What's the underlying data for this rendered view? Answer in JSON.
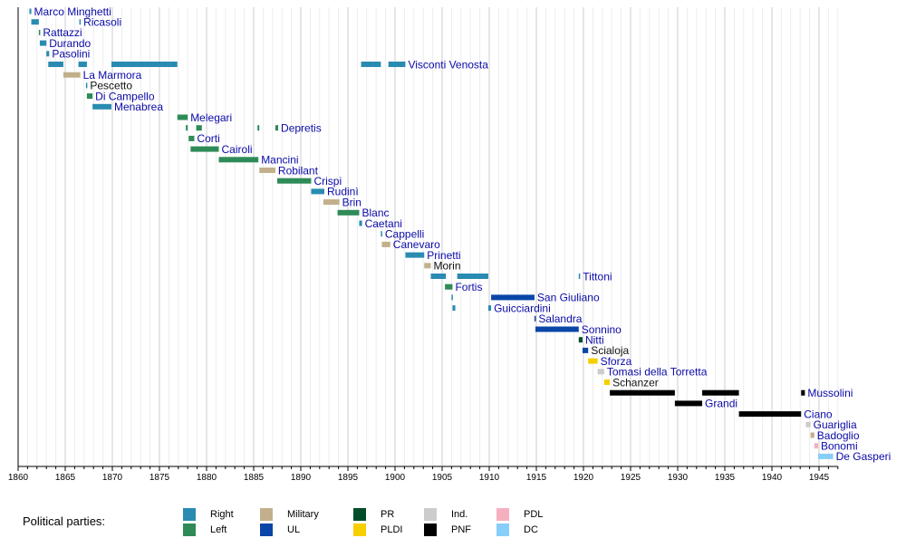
{
  "chart_data": {
    "type": "timeline",
    "title": "",
    "xlabel": "",
    "ylabel": "",
    "xlim": [
      1860,
      1947
    ],
    "x_ticks": [
      1860,
      1865,
      1870,
      1875,
      1880,
      1885,
      1890,
      1895,
      1900,
      1905,
      1910,
      1915,
      1920,
      1925,
      1930,
      1935,
      1940,
      1945
    ],
    "x_tick_labels": [
      "1860",
      "1865",
      "1870",
      "1875",
      "1880",
      "1885",
      "1890",
      "1895",
      "1900",
      "1905",
      "1910",
      "1915",
      "1920",
      "1925",
      "1930",
      "1935",
      "1940",
      "1945"
    ],
    "grid": true,
    "legend_placement": "bottom",
    "rows": [
      {
        "name": "Marco Minghetti",
        "linked": true,
        "terms": [
          {
            "start": 1861.2,
            "end": 1861.4,
            "party": "Right"
          }
        ]
      },
      {
        "name": "Ricasoli",
        "linked": true,
        "terms": [
          {
            "start": 1861.4,
            "end": 1862.2,
            "party": "Right"
          },
          {
            "start": 1866.5,
            "end": 1866.6,
            "party": "Right"
          }
        ]
      },
      {
        "name": "Rattazzi",
        "linked": true,
        "terms": [
          {
            "start": 1862.2,
            "end": 1862.3,
            "party": "Left"
          }
        ]
      },
      {
        "name": "Durando",
        "linked": true,
        "terms": [
          {
            "start": 1862.3,
            "end": 1863.0,
            "party": "Right"
          }
        ]
      },
      {
        "name": "Pasolini",
        "linked": true,
        "terms": [
          {
            "start": 1863.0,
            "end": 1863.3,
            "party": "Right"
          }
        ]
      },
      {
        "name": "Visconti Venosta",
        "linked": true,
        "terms": [
          {
            "start": 1863.2,
            "end": 1864.8,
            "party": "Right"
          },
          {
            "start": 1866.4,
            "end": 1867.3,
            "party": "Right"
          },
          {
            "start": 1869.9,
            "end": 1876.9,
            "party": "Right"
          },
          {
            "start": 1896.4,
            "end": 1898.5,
            "party": "Right"
          },
          {
            "start": 1899.3,
            "end": 1901.1,
            "party": "Right"
          }
        ]
      },
      {
        "name": "La Marmora",
        "linked": true,
        "terms": [
          {
            "start": 1864.8,
            "end": 1866.6,
            "party": "Military"
          }
        ]
      },
      {
        "name": "Pescetto",
        "linked": false,
        "terms": [
          {
            "start": 1867.2,
            "end": 1867.3,
            "party": "Right"
          }
        ]
      },
      {
        "name": "Di Campello",
        "linked": true,
        "terms": [
          {
            "start": 1867.3,
            "end": 1867.9,
            "party": "Left"
          }
        ]
      },
      {
        "name": "Menabrea",
        "linked": true,
        "terms": [
          {
            "start": 1867.9,
            "end": 1869.9,
            "party": "Right"
          }
        ]
      },
      {
        "name": "Melegari",
        "linked": true,
        "terms": [
          {
            "start": 1876.9,
            "end": 1878.0,
            "party": "Left"
          }
        ]
      },
      {
        "name": "Depretis",
        "linked": true,
        "terms": [
          {
            "start": 1877.8,
            "end": 1878.0,
            "party": "Left"
          },
          {
            "start": 1878.9,
            "end": 1879.5,
            "party": "Left"
          },
          {
            "start": 1885.4,
            "end": 1885.6,
            "party": "Left"
          },
          {
            "start": 1887.3,
            "end": 1887.6,
            "party": "Left"
          }
        ]
      },
      {
        "name": "Corti",
        "linked": true,
        "terms": [
          {
            "start": 1878.1,
            "end": 1878.7,
            "party": "Left"
          }
        ]
      },
      {
        "name": "Cairoli",
        "linked": true,
        "terms": [
          {
            "start": 1878.3,
            "end": 1881.3,
            "party": "Left"
          }
        ]
      },
      {
        "name": "Mancini",
        "linked": true,
        "terms": [
          {
            "start": 1881.3,
            "end": 1885.5,
            "party": "Left"
          }
        ]
      },
      {
        "name": "Robilant",
        "linked": true,
        "terms": [
          {
            "start": 1885.6,
            "end": 1887.3,
            "party": "Military"
          }
        ]
      },
      {
        "name": "Crispi",
        "linked": true,
        "terms": [
          {
            "start": 1887.5,
            "end": 1891.1,
            "party": "Left"
          }
        ]
      },
      {
        "name": "Rudinì",
        "linked": true,
        "terms": [
          {
            "start": 1891.1,
            "end": 1892.5,
            "party": "Right"
          }
        ]
      },
      {
        "name": "Brin",
        "linked": true,
        "terms": [
          {
            "start": 1892.4,
            "end": 1894.1,
            "party": "Military"
          }
        ]
      },
      {
        "name": "Blanc",
        "linked": true,
        "terms": [
          {
            "start": 1893.9,
            "end": 1896.2,
            "party": "Left"
          }
        ]
      },
      {
        "name": "Caetani",
        "linked": true,
        "terms": [
          {
            "start": 1896.2,
            "end": 1896.5,
            "party": "Right"
          }
        ]
      },
      {
        "name": "Cappelli",
        "linked": true,
        "terms": [
          {
            "start": 1898.5,
            "end": 1898.6,
            "party": "Right"
          }
        ]
      },
      {
        "name": "Canevaro",
        "linked": true,
        "terms": [
          {
            "start": 1898.6,
            "end": 1899.5,
            "party": "Military"
          }
        ]
      },
      {
        "name": "Prinetti",
        "linked": true,
        "terms": [
          {
            "start": 1901.1,
            "end": 1903.1,
            "party": "Right"
          }
        ]
      },
      {
        "name": "Morin",
        "linked": false,
        "terms": [
          {
            "start": 1903.1,
            "end": 1903.8,
            "party": "Military"
          }
        ]
      },
      {
        "name": "Tittoni",
        "linked": true,
        "terms": [
          {
            "start": 1903.8,
            "end": 1905.4,
            "party": "Right"
          },
          {
            "start": 1906.6,
            "end": 1909.9,
            "party": "Right"
          },
          {
            "start": 1919.5,
            "end": 1919.6,
            "party": "Right"
          }
        ]
      },
      {
        "name": "Fortis",
        "linked": true,
        "terms": [
          {
            "start": 1905.3,
            "end": 1906.1,
            "party": "Left"
          }
        ]
      },
      {
        "name": "San Giuliano",
        "linked": true,
        "terms": [
          {
            "start": 1906.0,
            "end": 1906.1,
            "party": "Right"
          },
          {
            "start": 1910.2,
            "end": 1914.8,
            "party": "UL"
          }
        ]
      },
      {
        "name": "Guicciardini",
        "linked": true,
        "terms": [
          {
            "start": 1906.1,
            "end": 1906.4,
            "party": "Right"
          },
          {
            "start": 1909.9,
            "end": 1910.2,
            "party": "Right"
          }
        ]
      },
      {
        "name": "Salandra",
        "linked": true,
        "terms": [
          {
            "start": 1914.8,
            "end": 1914.9,
            "party": "UL"
          }
        ]
      },
      {
        "name": "Sonnino",
        "linked": true,
        "terms": [
          {
            "start": 1914.9,
            "end": 1919.5,
            "party": "UL"
          }
        ]
      },
      {
        "name": "Nitti",
        "linked": true,
        "terms": [
          {
            "start": 1919.5,
            "end": 1919.9,
            "party": "PR"
          }
        ]
      },
      {
        "name": "Scialoja",
        "linked": false,
        "terms": [
          {
            "start": 1919.9,
            "end": 1920.5,
            "party": "UL"
          }
        ]
      },
      {
        "name": "Sforza",
        "linked": true,
        "terms": [
          {
            "start": 1920.5,
            "end": 1921.5,
            "party": "PLDI"
          }
        ]
      },
      {
        "name": "Tomasi della Torretta",
        "linked": true,
        "terms": [
          {
            "start": 1921.5,
            "end": 1922.2,
            "party": "Ind."
          }
        ]
      },
      {
        "name": "Schanzer",
        "linked": false,
        "terms": [
          {
            "start": 1922.2,
            "end": 1922.8,
            "party": "PLDI"
          }
        ]
      },
      {
        "name": "Mussolini",
        "linked": true,
        "terms": [
          {
            "start": 1922.8,
            "end": 1929.7,
            "party": "PNF"
          },
          {
            "start": 1932.6,
            "end": 1936.5,
            "party": "PNF"
          },
          {
            "start": 1943.1,
            "end": 1943.5,
            "party": "PNF"
          }
        ]
      },
      {
        "name": "Grandi",
        "linked": true,
        "terms": [
          {
            "start": 1929.7,
            "end": 1932.6,
            "party": "PNF"
          }
        ]
      },
      {
        "name": "Ciano",
        "linked": true,
        "terms": [
          {
            "start": 1936.5,
            "end": 1943.1,
            "party": "PNF"
          }
        ]
      },
      {
        "name": "Guariglia",
        "linked": true,
        "terms": [
          {
            "start": 1943.6,
            "end": 1944.1,
            "party": "Ind."
          }
        ]
      },
      {
        "name": "Badoglio",
        "linked": true,
        "terms": [
          {
            "start": 1944.1,
            "end": 1944.5,
            "party": "Military"
          }
        ]
      },
      {
        "name": "Bonomi",
        "linked": true,
        "terms": [
          {
            "start": 1944.5,
            "end": 1944.9,
            "party": "PDL"
          }
        ]
      },
      {
        "name": "De Gasperi",
        "linked": true,
        "terms": [
          {
            "start": 1944.9,
            "end": 1946.5,
            "party": "DC"
          }
        ]
      }
    ],
    "legend": {
      "title": "Political parties:",
      "items": [
        {
          "name": "Right",
          "color": "#2a8bb1"
        },
        {
          "name": "Left",
          "color": "#2e8b57"
        },
        {
          "name": "Military",
          "color": "#c2b08c"
        },
        {
          "name": "UL",
          "color": "#0a45a8"
        },
        {
          "name": "PR",
          "color": "#004d2a"
        },
        {
          "name": "PLDI",
          "color": "#f5cf00"
        },
        {
          "name": "Ind.",
          "color": "#cccccc"
        },
        {
          "name": "PNF",
          "color": "#000000"
        },
        {
          "name": "PDL",
          "color": "#f5b0c0"
        },
        {
          "name": "DC",
          "color": "#87cefa"
        }
      ]
    },
    "colors": {
      "linked_label": "#0a0aa8",
      "plain_label": "#111111",
      "grid_major": "#cccccc",
      "grid_minor": "#ececec",
      "axis": "#000000"
    }
  }
}
